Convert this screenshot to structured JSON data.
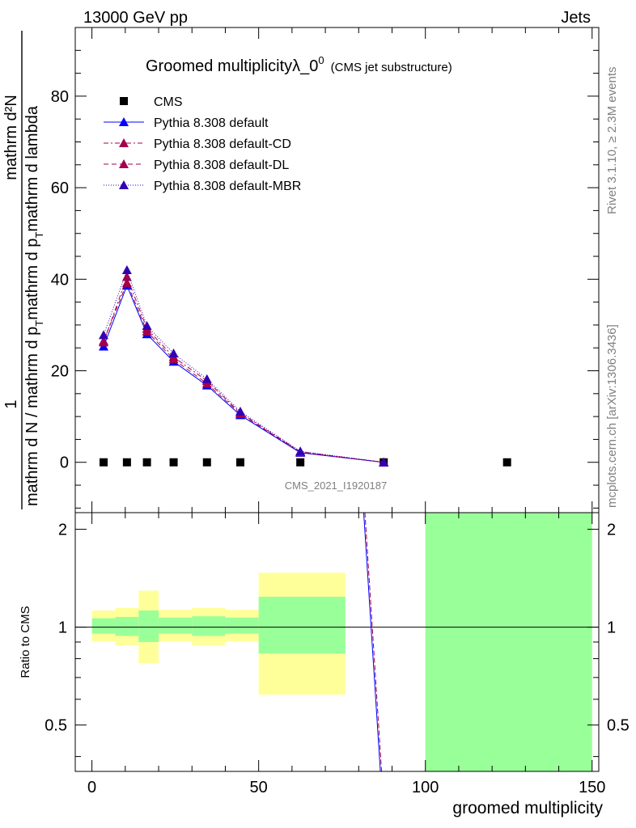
{
  "header": {
    "energy": "13000 GeV pp",
    "process": "Jets"
  },
  "side": {
    "rivet": "Rivet 3.1.10, ≥ 2.3M events",
    "mcplots": "mcplots.cern.ch [arXiv:1306.3436]"
  },
  "chart_data": {
    "type": "line",
    "title": "Groomed multiplicityλ_0",
    "title_superscript": "0",
    "title_suffix": "(CMS jet substructure)",
    "analysis_tag": "CMS_2021_I1920187",
    "xlabel": "groomed multiplicity",
    "ylabel_numerator": "1",
    "ylabel_denominator": "mathrm d N / mathrm d p_T mathrm d p_T mathrm d lambda",
    "ylabel_denominator_parts": [
      "mathrm d N / mathrm d p",
      "T",
      "mathrm d p",
      "T",
      "mathrm d lambda"
    ],
    "ylabel_top": "mathrm d²N",
    "xlim": [
      -5,
      152
    ],
    "ylim": [
      -11,
      95
    ],
    "xticks": [
      0,
      50,
      100,
      150
    ],
    "yticks": [
      0,
      20,
      40,
      60,
      80
    ],
    "ratio": {
      "ylabel": "Ratio to CMS",
      "ylim": [
        0.36,
        2.25
      ],
      "yticks": [
        0.5,
        1,
        2
      ],
      "bands": [
        {
          "x": [
            0,
            7
          ],
          "green": [
            0.955,
            1.065
          ],
          "yellow": [
            0.905,
            1.125
          ]
        },
        {
          "x": [
            7,
            14
          ],
          "green": [
            0.94,
            1.075
          ],
          "yellow": [
            0.88,
            1.145
          ]
        },
        {
          "x": [
            14,
            20
          ],
          "green": [
            0.9,
            1.125
          ],
          "yellow": [
            0.775,
            1.295
          ]
        },
        {
          "x": [
            20,
            30
          ],
          "green": [
            0.955,
            1.07
          ],
          "yellow": [
            0.905,
            1.13
          ]
        },
        {
          "x": [
            30,
            40
          ],
          "green": [
            0.94,
            1.08
          ],
          "yellow": [
            0.88,
            1.145
          ]
        },
        {
          "x": [
            40,
            50
          ],
          "green": [
            0.955,
            1.07
          ],
          "yellow": [
            0.905,
            1.13
          ]
        },
        {
          "x": [
            50,
            76
          ],
          "green": [
            0.83,
            1.24
          ],
          "yellow": [
            0.62,
            1.47
          ]
        },
        {
          "x": [
            100,
            150
          ],
          "green": [
            0.36,
            2.25
          ],
          "yellow": [
            0.36,
            2.25
          ]
        }
      ],
      "line": {
        "x": [
          81.5,
          86.5
        ],
        "y": [
          2.25,
          0.36
        ]
      }
    },
    "series": [
      {
        "name": "CMS",
        "marker": "square",
        "color": "#000000",
        "dash": "none",
        "x": [
          3.5,
          10.5,
          16.5,
          24.5,
          34.5,
          44.5,
          62.5,
          87.5,
          124.5
        ],
        "y": [
          0,
          0,
          0,
          0,
          0,
          0,
          0,
          0,
          0
        ]
      },
      {
        "name": "Pythia 8.308 default",
        "marker": "triangle",
        "color": "#0000ff",
        "dash": "none",
        "x": [
          3.5,
          10.5,
          16.5,
          24.5,
          34.5,
          44.5,
          62.5,
          87.5
        ],
        "y": [
          25.3,
          38.6,
          28.0,
          22.0,
          16.8,
          10.3,
          2.1,
          0.0
        ]
      },
      {
        "name": "Pythia 8.308 default-CD",
        "marker": "triangle",
        "color": "#a3004d",
        "dash": "6,3,2,3",
        "x": [
          3.5,
          10.5,
          16.5,
          24.5,
          34.5,
          44.5,
          62.5,
          87.5
        ],
        "y": [
          26.2,
          40.5,
          29.2,
          23.0,
          17.8,
          10.8,
          2.3,
          0.0
        ]
      },
      {
        "name": "Pythia 8.308 default-DL",
        "marker": "triangle",
        "color": "#a3004d",
        "dash": "6,4",
        "x": [
          3.5,
          10.5,
          16.5,
          24.5,
          34.5,
          44.5,
          62.5,
          87.5
        ],
        "y": [
          26.5,
          39.2,
          28.6,
          22.5,
          17.2,
          10.6,
          2.2,
          0.0
        ]
      },
      {
        "name": "Pythia 8.308 default-MBR",
        "marker": "triangle",
        "color": "#3300b3",
        "dash": "1,2",
        "x": [
          3.5,
          10.5,
          16.5,
          24.5,
          34.5,
          44.5,
          62.5,
          87.5
        ],
        "y": [
          27.8,
          42.0,
          29.8,
          23.8,
          18.2,
          11.1,
          2.4,
          0.0
        ]
      }
    ]
  }
}
